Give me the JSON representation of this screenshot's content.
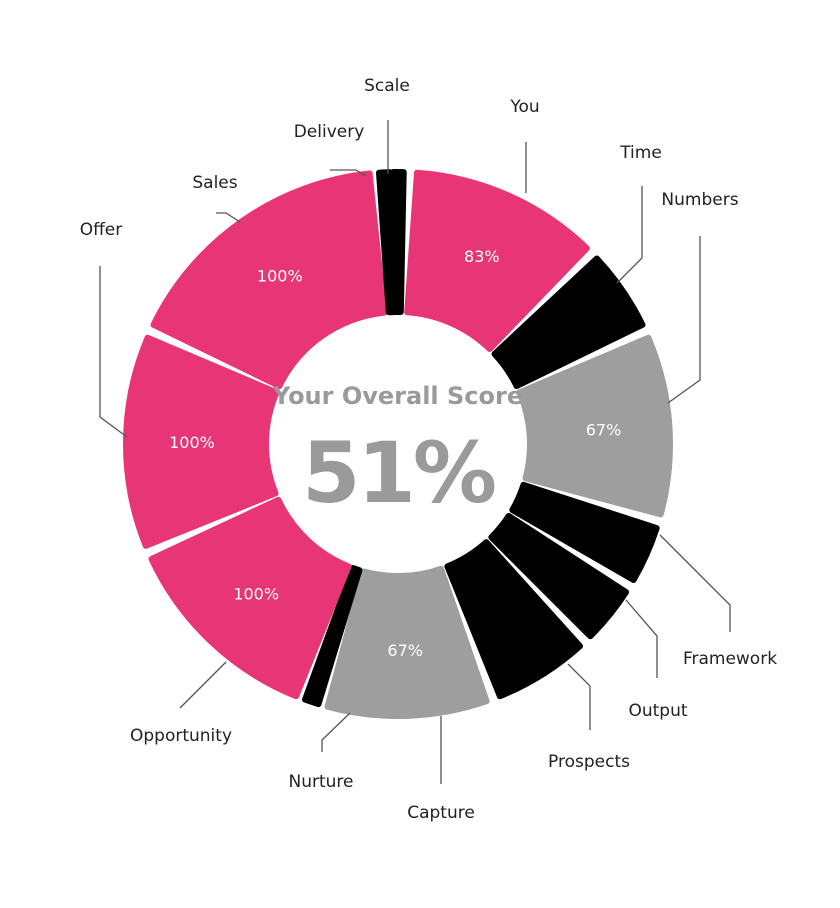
{
  "chart_data": {
    "type": "pie",
    "center_title": "Your Overall Score",
    "center_value": "51%",
    "colors": {
      "full": "#e83575",
      "partial": "#9e9e9e",
      "empty": "#000000"
    },
    "segments": [
      {
        "label": "You",
        "value": 83,
        "value_label": "83%",
        "status": "full"
      },
      {
        "label": "Time",
        "value": 0,
        "value_label": "",
        "status": "empty"
      },
      {
        "label": "Numbers",
        "value": 67,
        "value_label": "67%",
        "status": "partial"
      },
      {
        "label": "Framework",
        "value": 0,
        "value_label": "",
        "status": "empty"
      },
      {
        "label": "Output",
        "value": 0,
        "value_label": "",
        "status": "empty"
      },
      {
        "label": "Prospects",
        "value": 0,
        "value_label": "",
        "status": "empty"
      },
      {
        "label": "Capture",
        "value": 67,
        "value_label": "67%",
        "status": "partial"
      },
      {
        "label": "Nurture",
        "value": 0,
        "value_label": "",
        "status": "empty"
      },
      {
        "label": "Opportunity",
        "value": 100,
        "value_label": "100%",
        "status": "full"
      },
      {
        "label": "Offer",
        "value": 100,
        "value_label": "100%",
        "status": "full"
      },
      {
        "label": "Sales",
        "value": 100,
        "value_label": "100%",
        "status": "full"
      },
      {
        "label": "Delivery",
        "value": 0,
        "value_label": "",
        "status": "empty"
      },
      {
        "label": "Scale",
        "value": 0,
        "value_label": "",
        "status": "empty"
      }
    ]
  }
}
